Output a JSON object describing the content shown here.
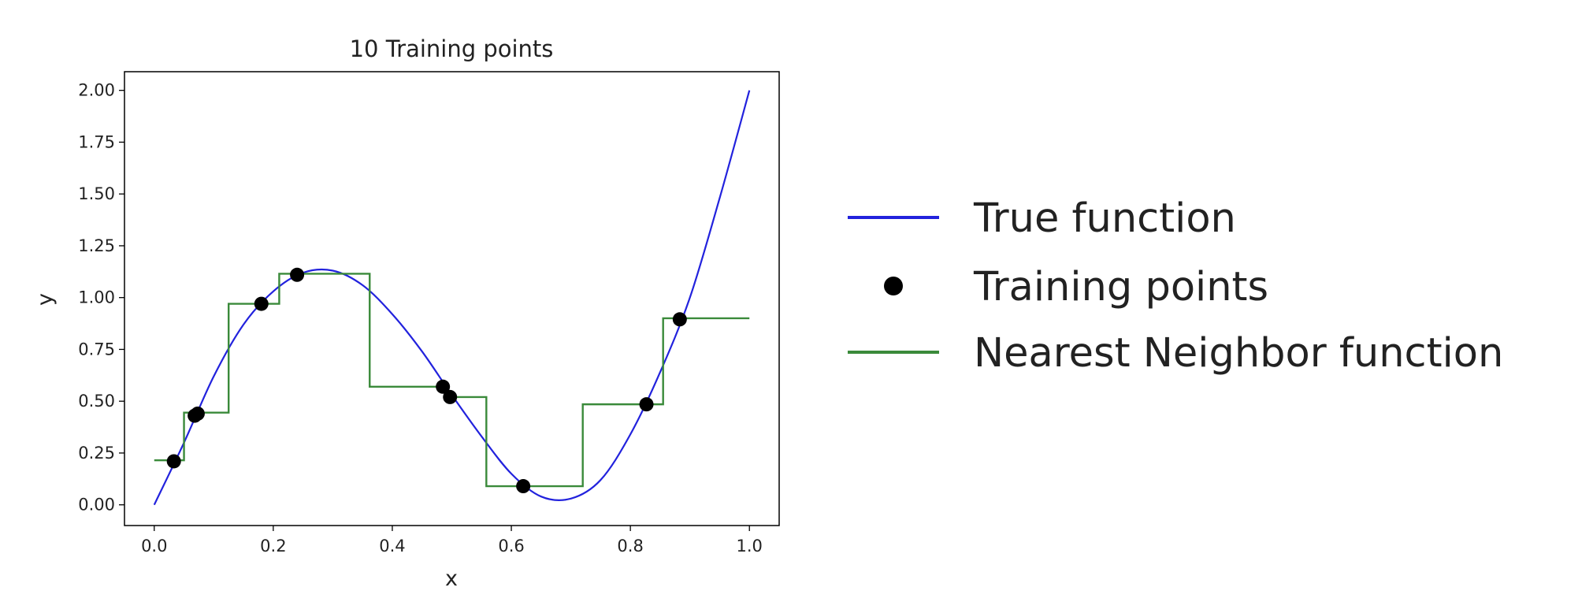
{
  "chart_data": {
    "type": "line",
    "title": "10 Training points",
    "xlabel": "x",
    "ylabel": "y",
    "xlim": [
      -0.05,
      1.05
    ],
    "ylim": [
      -0.1,
      2.09
    ],
    "xticks": [
      0.0,
      0.2,
      0.4,
      0.6,
      0.8,
      1.0
    ],
    "xtick_labels": [
      "0.0",
      "0.2",
      "0.4",
      "0.6",
      "0.8",
      "1.0"
    ],
    "yticks": [
      0,
      0.25,
      0.5,
      0.75,
      1.0,
      1.25,
      1.5,
      1.75,
      2.0
    ],
    "ytick_labels": [
      "0.00",
      "0.25",
      "0.50",
      "0.75",
      "1.00",
      "1.25",
      "1.50",
      "1.75",
      "2.00"
    ],
    "grid": false,
    "legend_placement": "outside-right",
    "series": [
      {
        "name": "True function",
        "kind": "line",
        "color": "#2222dd",
        "x": [
          0,
          0.05,
          0.1,
          0.15,
          0.2,
          0.25,
          0.3,
          0.35,
          0.4,
          0.45,
          0.5,
          0.55,
          0.6,
          0.65,
          0.7,
          0.75,
          0.8,
          0.85,
          0.9,
          0.95,
          1.0
        ],
        "y": [
          0,
          0.3,
          0.62,
          0.87,
          1.03,
          1.12,
          1.13,
          1.06,
          0.92,
          0.74,
          0.53,
          0.33,
          0.15,
          0.04,
          0.03,
          0.12,
          0.34,
          0.64,
          1.0,
          1.48,
          2.0
        ]
      },
      {
        "name": "Training points",
        "kind": "scatter",
        "color": "#000000",
        "x": [
          0.033,
          0.068,
          0.073,
          0.18,
          0.24,
          0.485,
          0.497,
          0.62,
          0.827,
          0.883
        ],
        "y": [
          0.21,
          0.43,
          0.44,
          0.97,
          1.11,
          0.57,
          0.52,
          0.09,
          0.485,
          0.895
        ]
      },
      {
        "name": "Nearest Neighbor function",
        "kind": "step",
        "color": "#3a8a3a",
        "breaks": [
          0,
          0.05,
          0.125,
          0.21,
          0.362,
          0.49,
          0.558,
          0.72,
          0.855,
          1.0
        ],
        "values": [
          0.215,
          0.445,
          0.97,
          1.115,
          0.57,
          0.52,
          0.09,
          0.485,
          0.9
        ]
      }
    ]
  }
}
